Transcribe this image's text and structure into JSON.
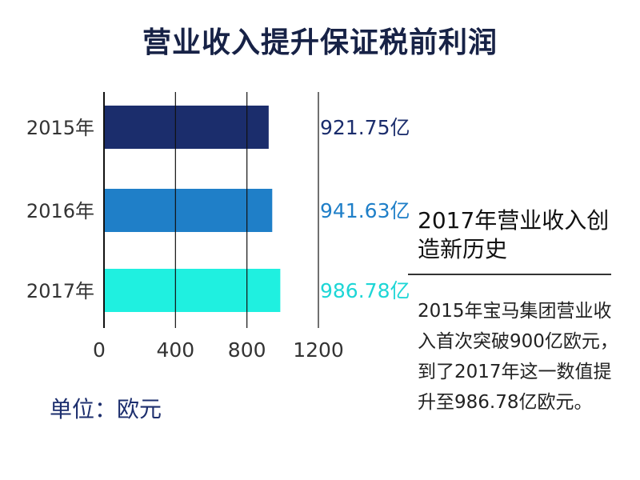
{
  "title": "营业收入提升保证税前利润",
  "unit_label": "单位：欧元",
  "side_panel": {
    "heading": "2017年营业收入创造新历史",
    "body": "2015年宝马集团营业收入首次突破900亿欧元，到了2017年这一数值提升至986.78亿欧元。"
  },
  "chart_data": {
    "type": "bar",
    "orientation": "horizontal",
    "title": "营业收入提升保证税前利润",
    "categories": [
      "2015年",
      "2016年",
      "2017年"
    ],
    "values": [
      921.75,
      941.63,
      986.78
    ],
    "value_labels": [
      "921.75亿",
      "941.63亿",
      "986.78亿"
    ],
    "bar_colors": [
      "#1b2d6c",
      "#1f7fc8",
      "#1ff0e0"
    ],
    "label_colors": [
      "#1b2d6c",
      "#1f7fc8",
      "#1ed6d6"
    ],
    "xticks": [
      "0",
      "400",
      "800",
      "1200"
    ],
    "xlim": [
      0,
      1200
    ],
    "grid": true,
    "xlabel": "",
    "ylabel": ""
  }
}
